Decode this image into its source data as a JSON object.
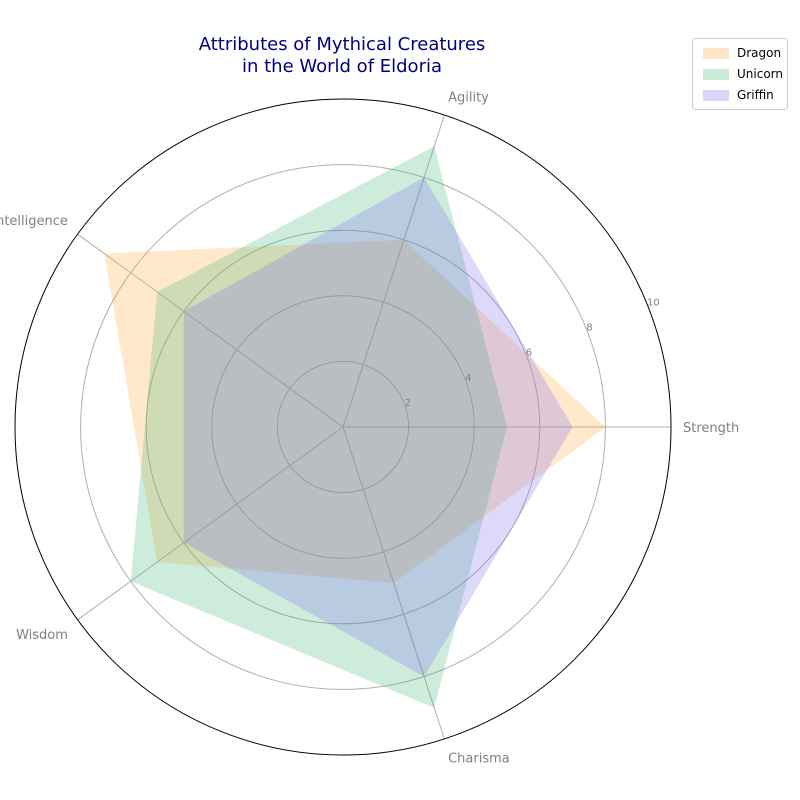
{
  "chart_data": {
    "type": "radar",
    "title_lines": [
      "Attributes of Mythical Creatures",
      "in the World of Eldoria"
    ],
    "axes": [
      "Strength",
      "Agility",
      "Intelligence",
      "Wisdom",
      "Charisma"
    ],
    "rmax": 10,
    "rticks": [
      2,
      4,
      6,
      8,
      10
    ],
    "grid": true,
    "legend_position": "top-right",
    "series": [
      {
        "name": "Dragon",
        "values": [
          8,
          6,
          9,
          7,
          5
        ],
        "color": "#ffa533"
      },
      {
        "name": "Unicorn",
        "values": [
          5,
          9,
          7,
          8,
          9
        ],
        "color": "#3cb371"
      },
      {
        "name": "Griffin",
        "values": [
          7,
          8,
          6,
          6,
          8
        ],
        "color": "#7b68ee"
      }
    ]
  }
}
